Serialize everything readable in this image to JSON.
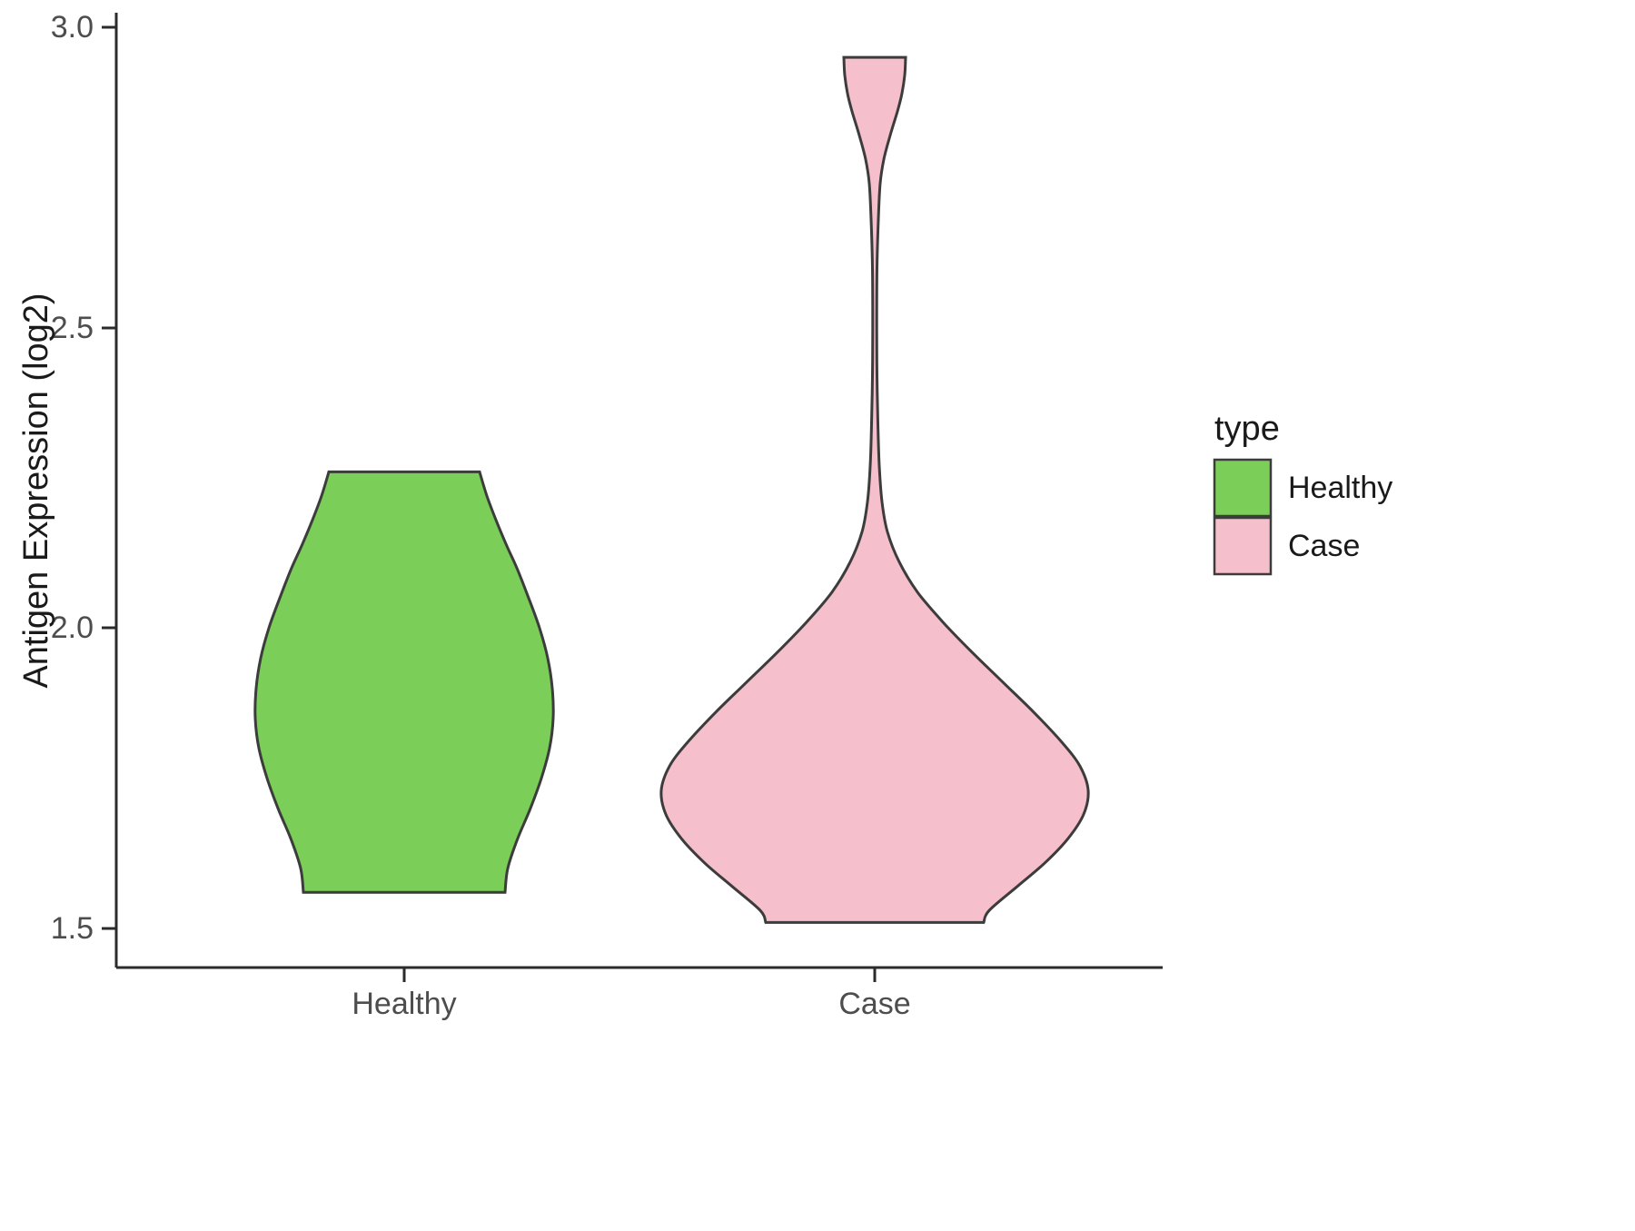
{
  "chart_data": {
    "type": "violin",
    "title": "",
    "xlabel": "",
    "ylabel": "Antigen Expression (log2)",
    "ylim": [
      1.45,
      3.0
    ],
    "grid": false,
    "background": "#ffffff",
    "yticks": [
      "3.0",
      "2.5",
      "2.0",
      "1.5"
    ],
    "ytick_values": [
      3.0,
      2.5,
      2.0,
      1.5
    ],
    "categories": [
      "Healthy",
      "Case"
    ],
    "legend": {
      "title": "type",
      "position": "right",
      "entries": [
        {
          "label": "Healthy",
          "color": "#7bce57"
        },
        {
          "label": "Case",
          "color": "#f5bfcb"
        }
      ]
    },
    "series": [
      {
        "name": "Healthy",
        "color": "#7bce57",
        "outline": "#3c3c3c",
        "value_range": [
          1.56,
          2.26
        ],
        "profile_note": "pairs of [expression_value, halfwidth_px estimated from plot]",
        "profile": [
          [
            2.26,
            83
          ],
          [
            2.22,
            91
          ],
          [
            2.18,
            101
          ],
          [
            2.14,
            112
          ],
          [
            2.1,
            124
          ],
          [
            2.05,
            137
          ],
          [
            2.0,
            149
          ],
          [
            1.95,
            158
          ],
          [
            1.9,
            163
          ],
          [
            1.85,
            164
          ],
          [
            1.8,
            160
          ],
          [
            1.75,
            151
          ],
          [
            1.7,
            139
          ],
          [
            1.65,
            125
          ],
          [
            1.6,
            114
          ],
          [
            1.56,
            111
          ]
        ]
      },
      {
        "name": "Case",
        "color": "#f5bfcb",
        "outline": "#3c3c3c",
        "value_range": [
          1.51,
          2.95
        ],
        "profile_note": "pairs of [expression_value, halfwidth_px estimated from plot]",
        "profile": [
          [
            2.95,
            34
          ],
          [
            2.92,
            33
          ],
          [
            2.89,
            30
          ],
          [
            2.86,
            25
          ],
          [
            2.82,
            17
          ],
          [
            2.78,
            10
          ],
          [
            2.74,
            6
          ],
          [
            2.68,
            4
          ],
          [
            2.6,
            2.5
          ],
          [
            2.5,
            2.2
          ],
          [
            2.42,
            2.5
          ],
          [
            2.34,
            3.5
          ],
          [
            2.27,
            5
          ],
          [
            2.21,
            8
          ],
          [
            2.16,
            14
          ],
          [
            2.11,
            27
          ],
          [
            2.06,
            47
          ],
          [
            2.01,
            75
          ],
          [
            1.96,
            107
          ],
          [
            1.91,
            141
          ],
          [
            1.86,
            175
          ],
          [
            1.81,
            206
          ],
          [
            1.77,
            226
          ],
          [
            1.73,
            235
          ],
          [
            1.69,
            230
          ],
          [
            1.65,
            213
          ],
          [
            1.61,
            188
          ],
          [
            1.57,
            157
          ],
          [
            1.53,
            126
          ],
          [
            1.51,
            120
          ]
        ]
      }
    ]
  }
}
